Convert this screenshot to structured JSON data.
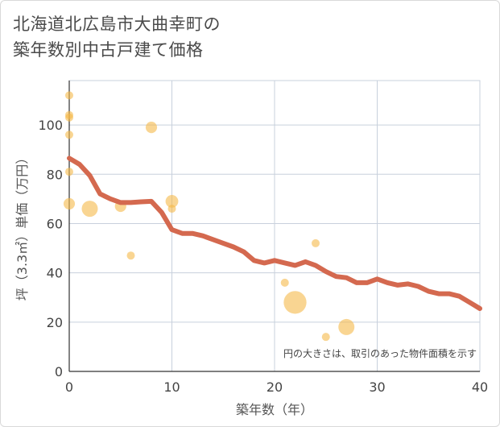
{
  "chart_data": {
    "type": "scatter",
    "title_lines": [
      "北海道北広島市大曲幸町の",
      "築年数別中古戸建て価格"
    ],
    "xlabel": "築年数（年）",
    "ylabel": "坪（3.3㎡）単価（万円）",
    "xlim": [
      0,
      40
    ],
    "ylim": [
      0,
      118
    ],
    "xticks": [
      0,
      10,
      20,
      30,
      40
    ],
    "yticks": [
      0,
      20,
      40,
      60,
      80,
      100
    ],
    "note": "円の大きさは、取引のあった物件面積を示す",
    "colors": {
      "bubble": "#f5b94a",
      "line": "#d4694f",
      "grid": "#c8d0dc"
    },
    "points": [
      {
        "x": 0,
        "y": 112,
        "size": 1
      },
      {
        "x": 0,
        "y": 104,
        "size": 1
      },
      {
        "x": 0,
        "y": 103,
        "size": 1
      },
      {
        "x": 0,
        "y": 96,
        "size": 1
      },
      {
        "x": 0,
        "y": 81,
        "size": 1
      },
      {
        "x": 0,
        "y": 68,
        "size": 2
      },
      {
        "x": 2,
        "y": 66,
        "size": 4
      },
      {
        "x": 5,
        "y": 67,
        "size": 2
      },
      {
        "x": 6,
        "y": 47,
        "size": 1
      },
      {
        "x": 8,
        "y": 99,
        "size": 2
      },
      {
        "x": 10,
        "y": 69,
        "size": 2.5
      },
      {
        "x": 10,
        "y": 66,
        "size": 1
      },
      {
        "x": 21,
        "y": 36,
        "size": 1
      },
      {
        "x": 22,
        "y": 28,
        "size": 8
      },
      {
        "x": 24,
        "y": 52,
        "size": 1
      },
      {
        "x": 25,
        "y": 14,
        "size": 1
      },
      {
        "x": 27,
        "y": 18,
        "size": 4
      }
    ],
    "trend": {
      "x": [
        0,
        1,
        2,
        3,
        4,
        5,
        6,
        7,
        8,
        9,
        10,
        11,
        12,
        13,
        14,
        15,
        16,
        17,
        18,
        19,
        20,
        21,
        22,
        23,
        24,
        25,
        26,
        27,
        28,
        29,
        30,
        31,
        32,
        33,
        34,
        35,
        36,
        37,
        38,
        39,
        40
      ],
      "y": [
        86.5,
        84,
        79.5,
        72,
        70,
        68.5,
        68.5,
        68.8,
        69,
        64.5,
        57.5,
        56,
        56,
        55,
        53.5,
        52,
        50.5,
        48.5,
        45,
        44,
        45,
        44,
        43,
        44.5,
        43,
        40.5,
        38.5,
        38,
        36,
        36,
        37.5,
        36,
        35,
        35.5,
        34.5,
        32.5,
        31.5,
        31.5,
        30.5,
        28,
        25.5
      ]
    }
  }
}
